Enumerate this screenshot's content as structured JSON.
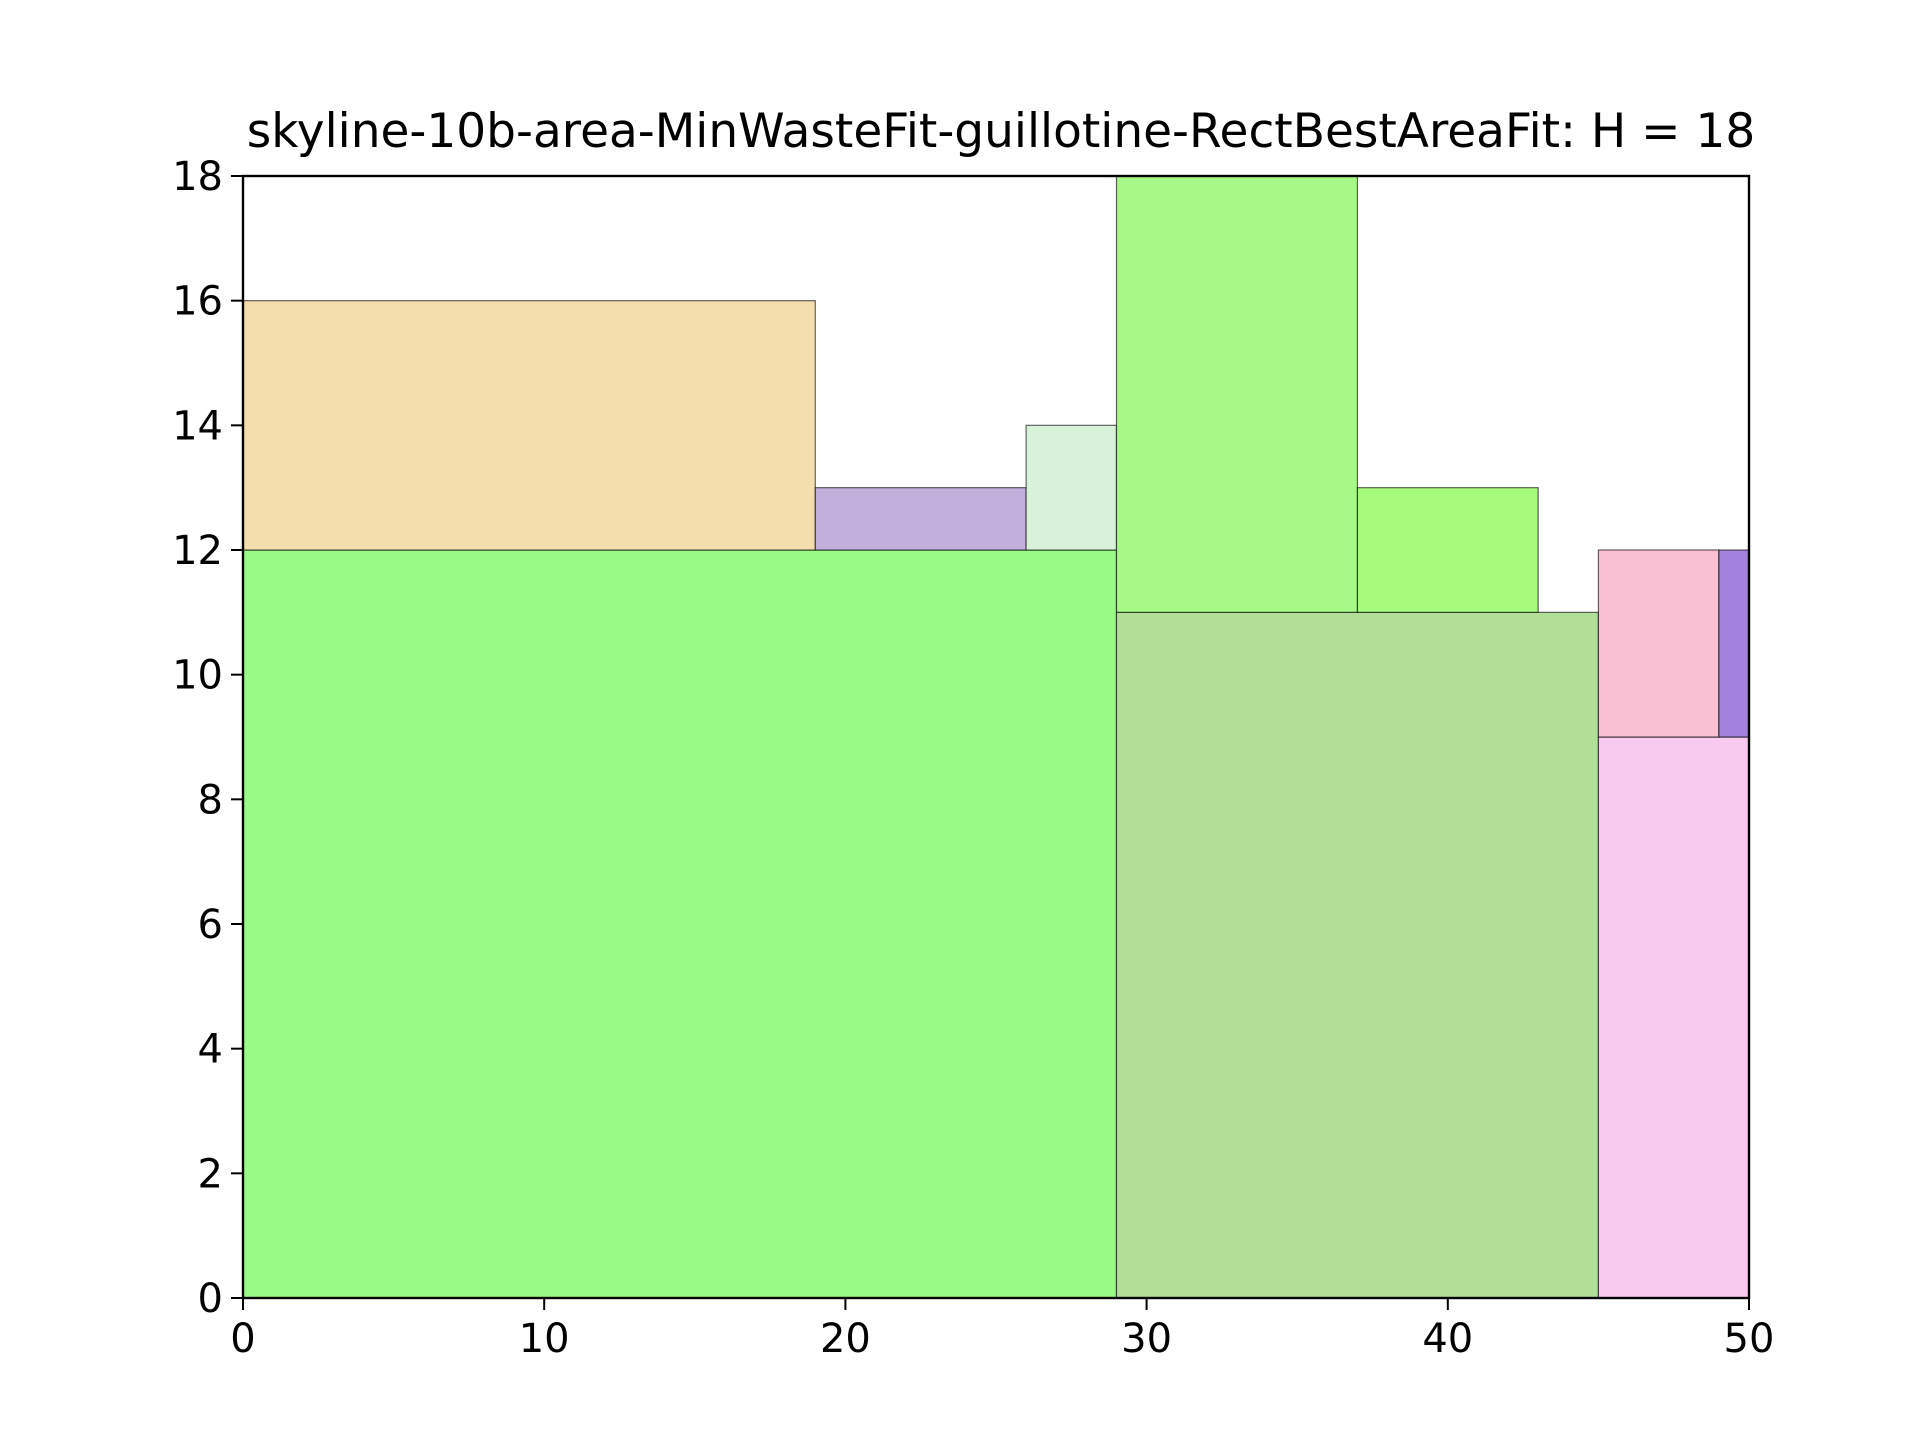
{
  "chart_data": {
    "type": "rectangle-packing",
    "title": "skyline-10b-area-MinWasteFit-guillotine-RectBestAreaFit: H = 18",
    "xlim": [
      0,
      50
    ],
    "ylim": [
      0,
      18
    ],
    "xticks": [
      "0",
      "10",
      "20",
      "30",
      "40",
      "50"
    ],
    "xtick_values": [
      0,
      10,
      20,
      30,
      40,
      50
    ],
    "yticks": [
      "0",
      "2",
      "4",
      "6",
      "8",
      "10",
      "12",
      "14",
      "16",
      "18"
    ],
    "ytick_values": [
      0,
      2,
      4,
      6,
      8,
      10,
      12,
      14,
      16,
      18
    ],
    "grid": false,
    "rects": [
      {
        "x": 0,
        "y": 0,
        "w": 29,
        "h": 12,
        "color": "#99fa86"
      },
      {
        "x": 0,
        "y": 12,
        "w": 19,
        "h": 4,
        "color": "#f5deae"
      },
      {
        "x": 19,
        "y": 12,
        "w": 7,
        "h": 1,
        "color": "#c2afdc"
      },
      {
        "x": 26,
        "y": 12,
        "w": 3,
        "h": 2,
        "color": "#d8f2da"
      },
      {
        "x": 29,
        "y": 0,
        "w": 16,
        "h": 11,
        "color": "#b2df97"
      },
      {
        "x": 29,
        "y": 11,
        "w": 8,
        "h": 7,
        "color": "#a6f887"
      },
      {
        "x": 37,
        "y": 11,
        "w": 6,
        "h": 2,
        "color": "#a6fa7c"
      },
      {
        "x": 45,
        "y": 0,
        "w": 5,
        "h": 9,
        "color": "#f8caef"
      },
      {
        "x": 45,
        "y": 9,
        "w": 4,
        "h": 3,
        "color": "#f9bfd3"
      },
      {
        "x": 49,
        "y": 9,
        "w": 1,
        "h": 3,
        "color": "#a282dd"
      }
    ]
  }
}
